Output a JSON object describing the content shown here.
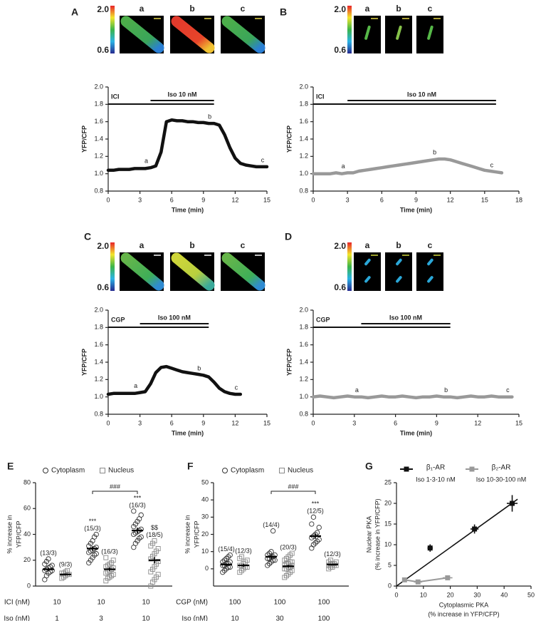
{
  "chart_data": [
    {
      "type": "line",
      "panel": "A",
      "colorbar_labels": [
        "2.0",
        "0.6"
      ],
      "image_labels": [
        "a",
        "b",
        "c"
      ],
      "ylabel": "YFP/CFP",
      "xlabel": "Time (min)",
      "xlim": [
        0,
        15
      ],
      "xticks": [
        0,
        3,
        6,
        9,
        12,
        15
      ],
      "ylim": [
        0.8,
        2
      ],
      "yticks": [
        0.8,
        {
          "value": 1,
          "label": "1.0"
        },
        1.2,
        1.4,
        1.6,
        1.8,
        {
          "value": 2,
          "label": "2.0"
        }
      ],
      "treatments": [
        {
          "label": "ICI",
          "start": 0,
          "end": 10
        },
        {
          "label": "Iso 10 nM",
          "start": 4,
          "end": 10
        }
      ],
      "series": [
        {
          "color": "#111111",
          "x": [
            0,
            0.5,
            1,
            1.5,
            2,
            2.5,
            3,
            3.5,
            4,
            4.5,
            5,
            5.5,
            6,
            6.5,
            7,
            7.5,
            8,
            8.5,
            9,
            9.5,
            10,
            10.5,
            11,
            11.5,
            12,
            12.5,
            13,
            13.5,
            14,
            14.5,
            15
          ],
          "values": [
            1.04,
            1.04,
            1.05,
            1.05,
            1.05,
            1.06,
            1.06,
            1.06,
            1.07,
            1.09,
            1.25,
            1.6,
            1.62,
            1.61,
            1.61,
            1.6,
            1.6,
            1.59,
            1.59,
            1.58,
            1.58,
            1.56,
            1.45,
            1.3,
            1.18,
            1.12,
            1.1,
            1.09,
            1.08,
            1.08,
            1.08
          ]
        }
      ],
      "point_labels": [
        {
          "text": "a",
          "x": 4
        },
        {
          "text": "b",
          "x": 10
        },
        {
          "text": "c",
          "x": 15
        }
      ]
    },
    {
      "type": "line",
      "panel": "B",
      "colorbar_labels": [
        "2.0",
        "0.6"
      ],
      "image_labels": [
        "a",
        "b",
        "c"
      ],
      "ylabel": "YFP/CFP",
      "xlabel": "Time (min)",
      "xlim": [
        0,
        18
      ],
      "xticks": [
        0,
        3,
        6,
        9,
        12,
        15,
        18
      ],
      "ylim": [
        0.8,
        2
      ],
      "yticks": [
        0.8,
        {
          "value": 1,
          "label": "1.0"
        },
        1.2,
        1.4,
        1.6,
        1.8,
        {
          "value": 2,
          "label": "2.0"
        }
      ],
      "treatments": [
        {
          "label": "ICI",
          "start": 0,
          "end": 16
        },
        {
          "label": "Iso 10 nM",
          "start": 3,
          "end": 16
        }
      ],
      "series": [
        {
          "color": "#999999",
          "x": [
            0,
            0.5,
            1,
            1.5,
            2,
            2.5,
            3,
            3.5,
            4,
            4.5,
            5,
            5.5,
            6,
            6.5,
            7,
            7.5,
            8,
            8.5,
            9,
            9.5,
            10,
            10.5,
            11,
            11.5,
            12,
            12.5,
            13,
            13.5,
            14,
            14.5,
            15,
            15.5,
            16,
            16.5
          ],
          "values": [
            1,
            1,
            1,
            1,
            1.01,
            1,
            1.01,
            1.01,
            1.03,
            1.04,
            1.05,
            1.06,
            1.07,
            1.08,
            1.09,
            1.1,
            1.11,
            1.12,
            1.13,
            1.14,
            1.15,
            1.16,
            1.17,
            1.17,
            1.16,
            1.14,
            1.12,
            1.1,
            1.08,
            1.06,
            1.04,
            1.03,
            1.02,
            1.01
          ]
        }
      ],
      "point_labels": [
        {
          "text": "a",
          "x": 3
        },
        {
          "text": "b",
          "x": 11
        },
        {
          "text": "c",
          "x": 16
        }
      ]
    },
    {
      "type": "line",
      "panel": "C",
      "colorbar_labels": [
        "2.0",
        "0.6"
      ],
      "image_labels": [
        "a",
        "b",
        "c"
      ],
      "ylabel": "YFP/CFP",
      "xlabel": "Time (min)",
      "xlim": [
        0,
        15
      ],
      "xticks": [
        0,
        3,
        6,
        9,
        12,
        15
      ],
      "ylim": [
        0.8,
        2
      ],
      "yticks": [
        0.8,
        {
          "value": 1,
          "label": "1.0"
        },
        1.2,
        1.4,
        1.6,
        1.8,
        {
          "value": 2,
          "label": "2.0"
        }
      ],
      "treatments": [
        {
          "label": "CGP",
          "start": 0,
          "end": 9.5
        },
        {
          "label": "Iso 100 nM",
          "start": 3,
          "end": 9.5
        }
      ],
      "series": [
        {
          "color": "#111111",
          "x": [
            0,
            0.5,
            1,
            1.5,
            2,
            2.5,
            3,
            3.5,
            4,
            4.5,
            5,
            5.5,
            6,
            6.5,
            7,
            7.5,
            8,
            8.5,
            9,
            9.5,
            10,
            10.5,
            11,
            11.5,
            12,
            12.5
          ],
          "values": [
            1.03,
            1.04,
            1.04,
            1.04,
            1.04,
            1.04,
            1.05,
            1.06,
            1.15,
            1.28,
            1.34,
            1.35,
            1.33,
            1.31,
            1.29,
            1.28,
            1.27,
            1.26,
            1.25,
            1.23,
            1.17,
            1.1,
            1.06,
            1.04,
            1.03,
            1.03
          ]
        }
      ],
      "point_labels": [
        {
          "text": "a",
          "x": 3
        },
        {
          "text": "b",
          "x": 9
        },
        {
          "text": "c",
          "x": 12.5
        }
      ]
    },
    {
      "type": "line",
      "panel": "D",
      "colorbar_labels": [
        "2.0",
        "0.6"
      ],
      "image_labels": [
        "a",
        "b",
        "c"
      ],
      "ylabel": "YFP/CFP",
      "xlabel": "Time (min)",
      "xlim": [
        0,
        15
      ],
      "xticks": [
        0,
        3,
        6,
        9,
        12,
        15
      ],
      "ylim": [
        0.8,
        2
      ],
      "yticks": [
        0.8,
        {
          "value": 1,
          "label": "1.0"
        },
        1.2,
        1.4,
        1.6,
        1.8,
        {
          "value": 2,
          "label": "2.0"
        }
      ],
      "treatments": [
        {
          "label": "CGP",
          "start": 0,
          "end": 10
        },
        {
          "label": "Iso 100 nM",
          "start": 3.5,
          "end": 10
        }
      ],
      "series": [
        {
          "color": "#999999",
          "x": [
            0,
            0.5,
            1,
            1.5,
            2,
            2.5,
            3,
            3.5,
            4,
            4.5,
            5,
            5.5,
            6,
            6.5,
            7,
            7.5,
            8,
            8.5,
            9,
            9.5,
            10,
            10.5,
            11,
            11.5,
            12,
            12.5,
            13,
            13.5,
            14,
            14.5
          ],
          "values": [
            1,
            1.01,
            1,
            0.99,
            1,
            1.01,
            1,
            1,
            0.99,
            1,
            1.01,
            1,
            1,
            1.01,
            1,
            0.99,
            1,
            1,
            1.01,
            1,
            1,
            0.99,
            1,
            1.01,
            1,
            1,
            1.01,
            1,
            1,
            1
          ]
        }
      ],
      "point_labels": [
        {
          "text": "a",
          "x": 3.5
        },
        {
          "text": "b",
          "x": 10
        },
        {
          "text": "c",
          "x": 14.5
        }
      ]
    },
    {
      "type": "strip",
      "panel": "E",
      "ylabel": [
        "% increase in",
        "YFP/CFP"
      ],
      "ylim": [
        0,
        80
      ],
      "yticks": [
        0,
        20,
        40,
        60,
        80
      ],
      "series": [
        {
          "name": "Cytoplasm",
          "marker": "circle",
          "color": "#333333",
          "groups": [
            [
              5,
              8,
              10,
              11,
              12,
              12,
              13,
              14,
              15,
              16,
              17,
              19,
              21
            ],
            [
              18,
              20,
              22,
              24,
              25,
              26,
              27,
              28,
              29,
              30,
              31,
              33,
              35,
              38,
              40
            ],
            [
              30,
              33,
              35,
              37,
              38,
              40,
              41,
              42,
              43,
              44,
              46,
              48,
              50,
              52,
              55,
              58
            ]
          ],
          "means": [
            13,
            29,
            43
          ],
          "errors": [
            1.3,
            1.8,
            2.2
          ],
          "n_labels": [
            "(13/3)",
            "(15/3)",
            "(16/3)"
          ],
          "sig_labels": [
            null,
            "***",
            "***"
          ]
        },
        {
          "name": "Nucleus",
          "marker": "square",
          "color": "#888888",
          "groups": [
            [
              6,
              7,
              8,
              9,
              9,
              10,
              10,
              11,
              12
            ],
            [
              4,
              6,
              7,
              8,
              9,
              10,
              11,
              12,
              13,
              14,
              15,
              16,
              17,
              18,
              20,
              22
            ],
            [
              0,
              3,
              5,
              7,
              9,
              11,
              13,
              15,
              17,
              19,
              21,
              23,
              25,
              27,
              29,
              31,
              33,
              35
            ]
          ],
          "means": [
            9,
            13,
            20
          ],
          "errors": [
            0.7,
            1.3,
            2.5
          ],
          "n_labels": [
            "(9/3)",
            "(16/3)",
            "(18/5)"
          ],
          "sig_labels": [
            null,
            null,
            "$$"
          ]
        }
      ],
      "comparison": "###",
      "conditions": [
        {
          "label": "ICI (nM)",
          "values": [
            10,
            10,
            10
          ]
        },
        {
          "label": "Iso (nM)",
          "values": [
            1,
            3,
            10
          ]
        }
      ]
    },
    {
      "type": "strip",
      "panel": "F",
      "ylabel": [
        "% increase in",
        "YFP/CFP"
      ],
      "ylim": [
        -10,
        50
      ],
      "yticks": [
        0,
        10,
        20,
        30,
        40,
        50
      ],
      "series": [
        {
          "name": "Cytoplasm",
          "marker": "circle",
          "color": "#333333",
          "groups": [
            [
              -2,
              -1,
              0,
              1,
              1,
              2,
              2,
              3,
              3,
              4,
              4,
              5,
              6,
              7,
              8
            ],
            [
              2,
              3,
              4,
              5,
              5,
              6,
              6,
              7,
              7,
              8,
              8,
              9,
              10,
              22
            ],
            [
              12,
              14,
              15,
              16,
              17,
              18,
              19,
              20,
              21,
              24,
              26,
              30
            ]
          ],
          "means": [
            2.5,
            7,
            19
          ],
          "errors": [
            0.7,
            1.2,
            1.6
          ],
          "n_labels": [
            "(15/4)",
            "(14/4)",
            "(12/5)"
          ],
          "sig_labels": [
            null,
            null,
            "***"
          ]
        },
        {
          "name": "Nucleus",
          "marker": "square",
          "color": "#888888",
          "groups": [
            [
              -2,
              -1,
              0,
              1,
              1,
              2,
              2,
              3,
              4,
              5,
              6,
              7
            ],
            [
              -5,
              -4,
              -3,
              -2,
              -1,
              0,
              0,
              1,
              1,
              2,
              2,
              3,
              3,
              4,
              4,
              5,
              6,
              7,
              8,
              9
            ],
            [
              0,
              1,
              1,
              2,
              2,
              2,
              3,
              3,
              3,
              4,
              4,
              5
            ]
          ],
          "means": [
            2,
            1.5,
            2.5
          ],
          "errors": [
            0.8,
            0.8,
            0.4
          ],
          "n_labels": [
            "(12/3)",
            "(20/3)",
            "(12/3)"
          ],
          "sig_labels": [
            null,
            null,
            null
          ]
        }
      ],
      "comparison": "###",
      "conditions": [
        {
          "label": "CGP (nM)",
          "values": [
            100,
            100,
            100
          ]
        },
        {
          "label": "Iso (nM)",
          "values": [
            10,
            30,
            100
          ]
        }
      ]
    },
    {
      "type": "scatter",
      "panel": "G",
      "xlabel": [
        "Cytoplasmic PKA",
        "(% increase in YFP/CFP)"
      ],
      "ylabel": [
        "Nuclear PKA",
        "(% increase in YFP/CFP)"
      ],
      "xlim": [
        0,
        50
      ],
      "xticks": [
        0,
        10,
        20,
        30,
        40,
        50
      ],
      "ylim": [
        0,
        25
      ],
      "yticks": [
        0,
        5,
        10,
        15,
        20,
        25
      ],
      "series": [
        {
          "name": "β₁-AR",
          "subtitle": "Iso 1-3-10 nM",
          "color": "#111111",
          "x": [
            12.5,
            29,
            43
          ],
          "values": [
            9.2,
            13.8,
            20
          ],
          "xerr": [
            1,
            1.5,
            2
          ],
          "yerr": [
            0.9,
            1.1,
            2
          ],
          "fit": {
            "x": [
              0,
              45
            ],
            "values": [
              0,
              21
            ]
          }
        },
        {
          "name": "β₂-AR",
          "subtitle": "Iso 10-30-100 nM",
          "color": "#999999",
          "x": [
            3,
            8,
            19
          ],
          "values": [
            1.5,
            1,
            2
          ],
          "xerr": [
            0.8,
            1.5,
            1.8
          ],
          "yerr": [
            0.4,
            0.4,
            0.5
          ]
        }
      ]
    }
  ]
}
